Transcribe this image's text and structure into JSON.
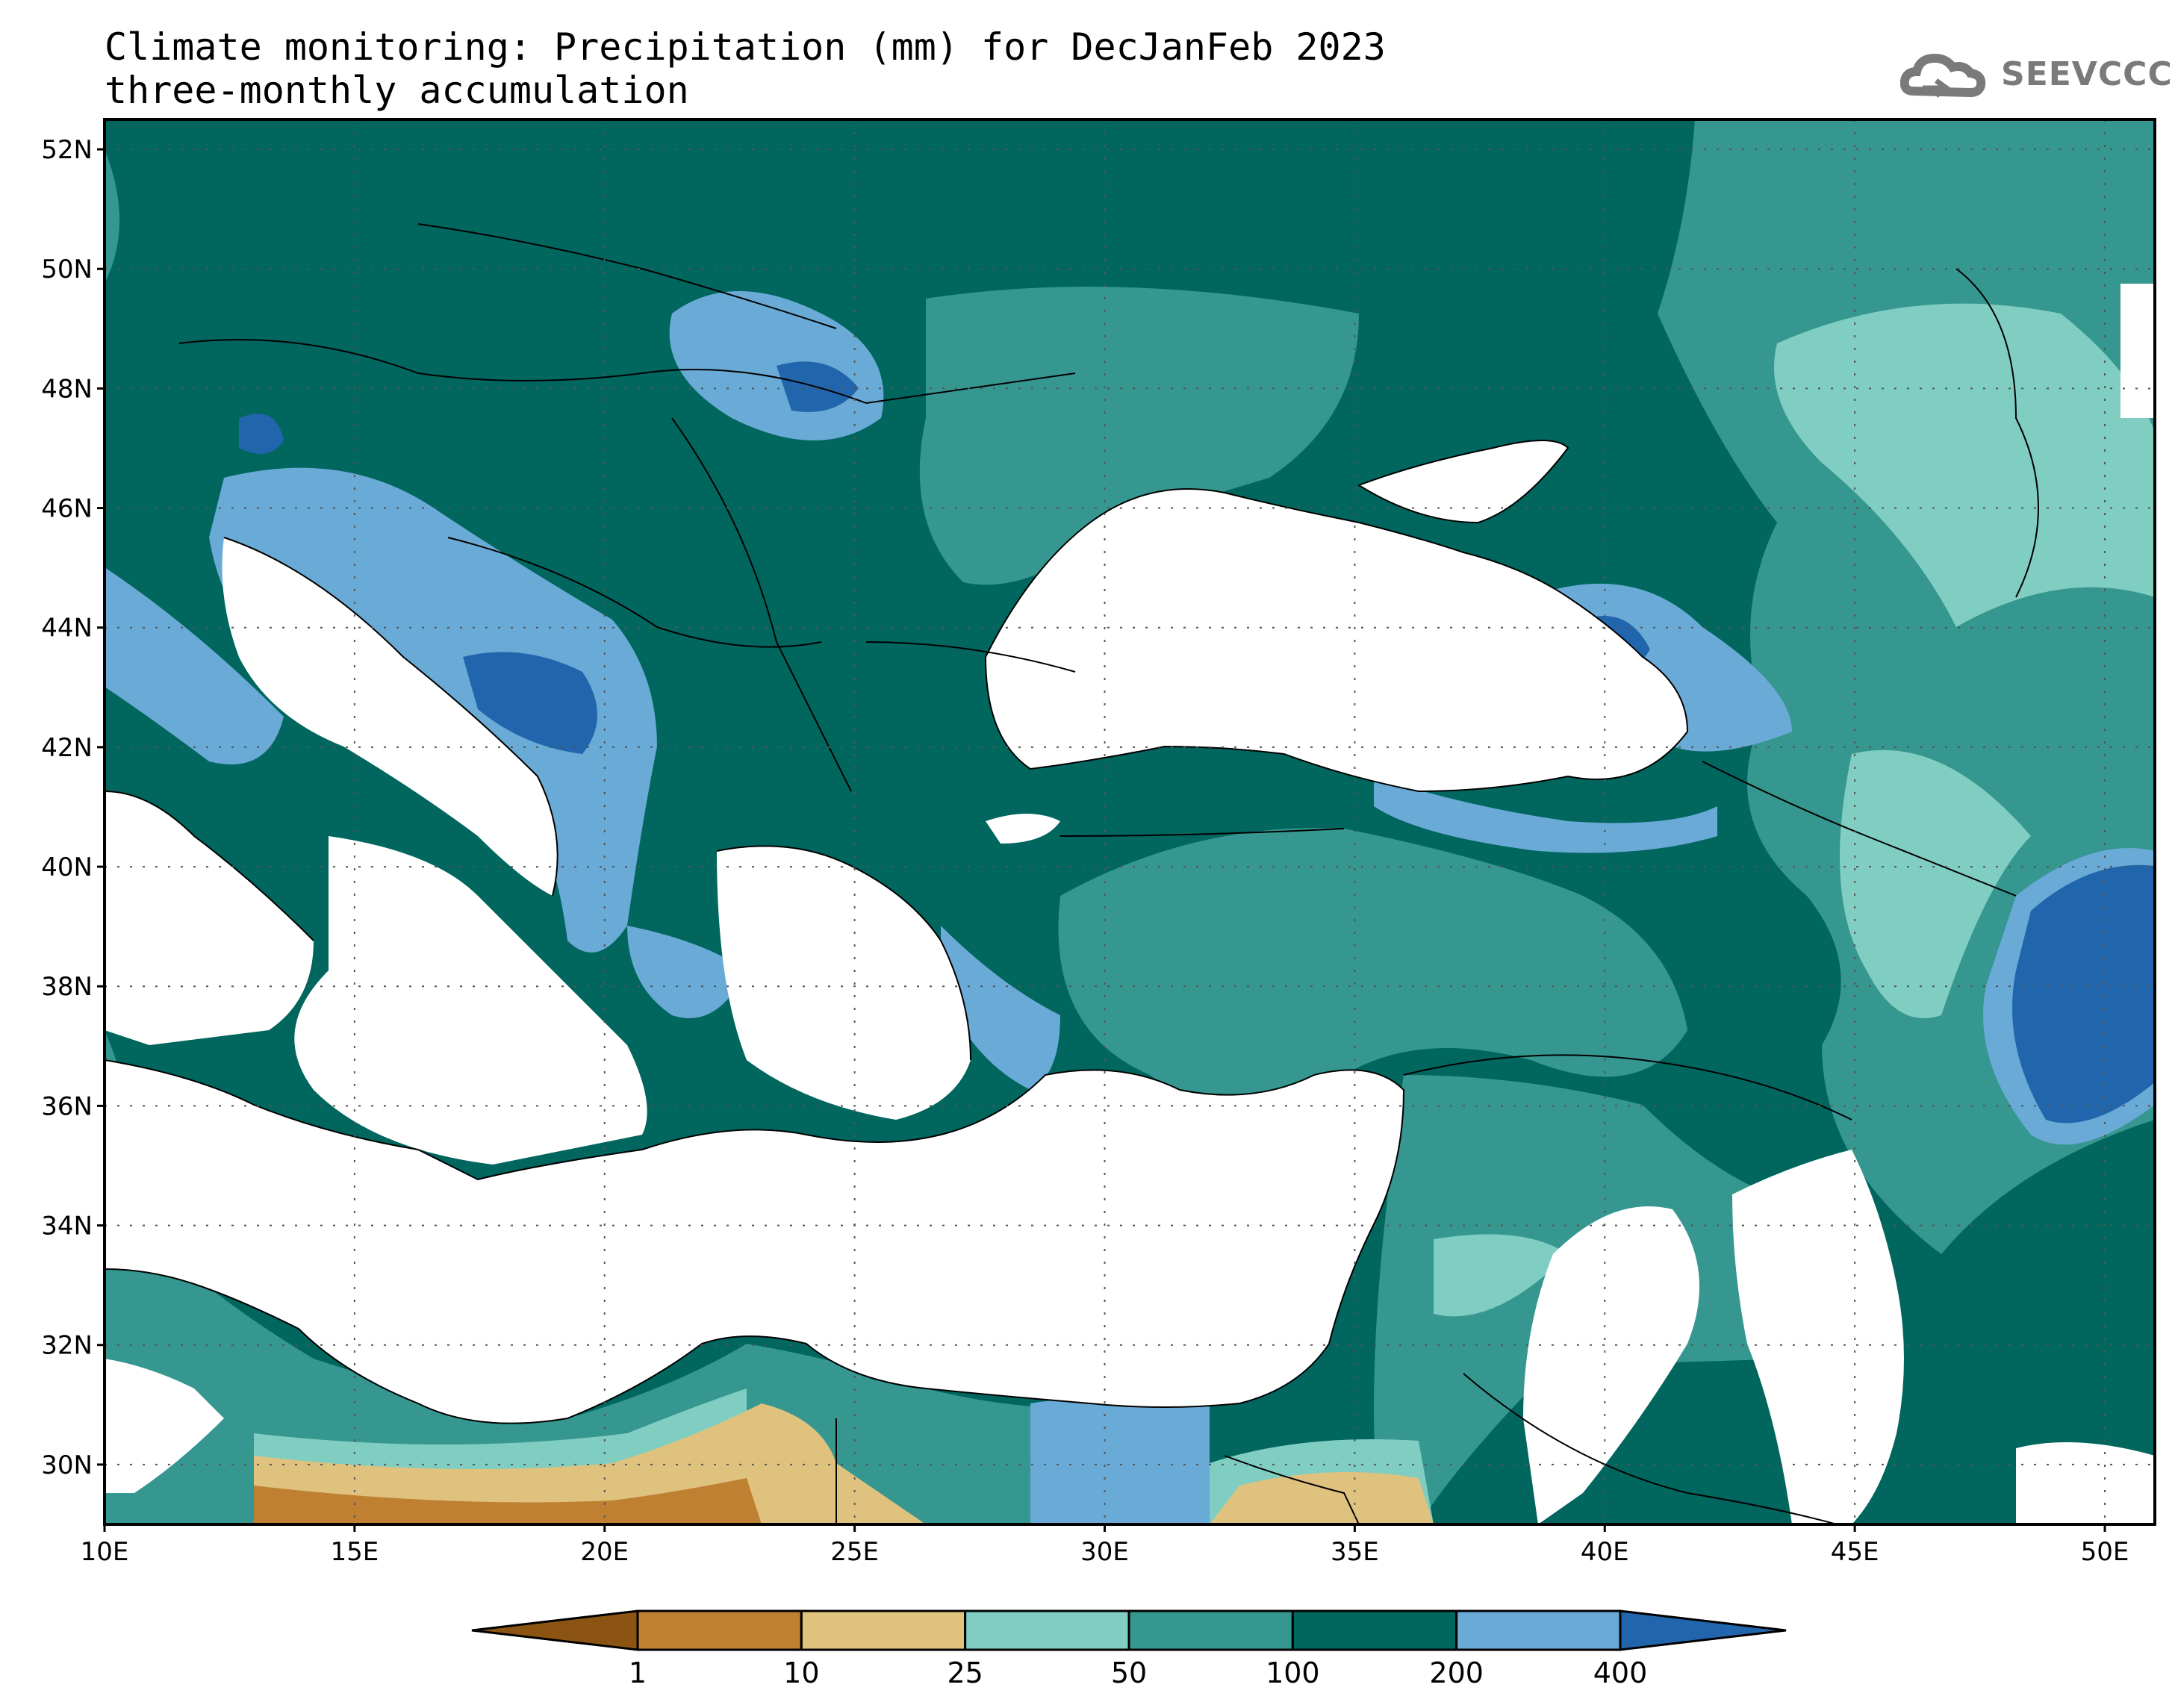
{
  "title": {
    "line1": "Climate monitoring: Precipitation (mm) for DecJanFeb 2023",
    "line2": "three-monthly accumulation"
  },
  "logo": {
    "text": "SEEVCCC",
    "icon": "cloud-icon",
    "color": "#7a7a7a"
  },
  "map": {
    "lon_range": [
      10,
      51
    ],
    "lat_range": [
      29,
      52.5
    ],
    "lat_ticks": [
      "52N",
      "50N",
      "48N",
      "46N",
      "44N",
      "42N",
      "40N",
      "38N",
      "36N",
      "34N",
      "32N",
      "30N"
    ],
    "lon_ticks": [
      "10E",
      "15E",
      "20E",
      "25E",
      "30E",
      "35E",
      "40E",
      "45E",
      "50E"
    ],
    "gridlines": "dotted"
  },
  "colorbar": {
    "labels": [
      "1",
      "10",
      "25",
      "50",
      "100",
      "200",
      "400"
    ],
    "colors": [
      "#8c5412",
      "#bf8032",
      "#dfc27e",
      "#80cdc1",
      "#35978f",
      "#01665e",
      "#6aaad6",
      "#2166ac"
    ]
  }
}
